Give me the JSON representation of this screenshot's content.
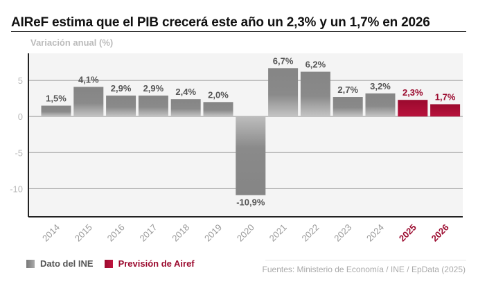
{
  "title": "AIReF estima que el PIB crecerá este año un 2,3% y un 1,7% en 2026",
  "chart_data": {
    "type": "bar",
    "ylabel": "Variación anual (%)",
    "categories": [
      "2014",
      "2015",
      "2016",
      "2017",
      "2018",
      "2019",
      "2020",
      "2021",
      "2022",
      "2023",
      "2024",
      "2025",
      "2026"
    ],
    "values": [
      1.5,
      4.1,
      2.9,
      2.9,
      2.4,
      2.0,
      -10.9,
      6.7,
      6.2,
      2.7,
      3.2,
      2.3,
      1.7
    ],
    "labels": [
      "1,5%",
      "4,1%",
      "2,9%",
      "2,9%",
      "2,4%",
      "2,0%",
      "-10,9%",
      "6,7%",
      "6,2%",
      "2,7%",
      "3,2%",
      "2,3%",
      "1,7%"
    ],
    "series_type": [
      "ine",
      "ine",
      "ine",
      "ine",
      "ine",
      "ine",
      "ine",
      "ine",
      "ine",
      "ine",
      "ine",
      "airef",
      "airef"
    ],
    "yticks": [
      5,
      0,
      -5,
      -10
    ],
    "ytick_labels": [
      "5",
      "0",
      "-5",
      "-10"
    ],
    "ylim": [
      -13.9,
      8.75
    ],
    "grid": true,
    "legend_placement": "bottom-left",
    "colors": {
      "ine": "#8a8a8a",
      "airef": "#9b0a2e",
      "plot_bg": "#f4f4f4"
    }
  },
  "legend": [
    {
      "label": "Dato del INE",
      "color": "#8a8a8a"
    },
    {
      "label": "Previsión de Airef",
      "color": "#9b0a2e"
    }
  ],
  "source": "Fuentes: Ministerio de Economía / INE / EpData (2025)"
}
